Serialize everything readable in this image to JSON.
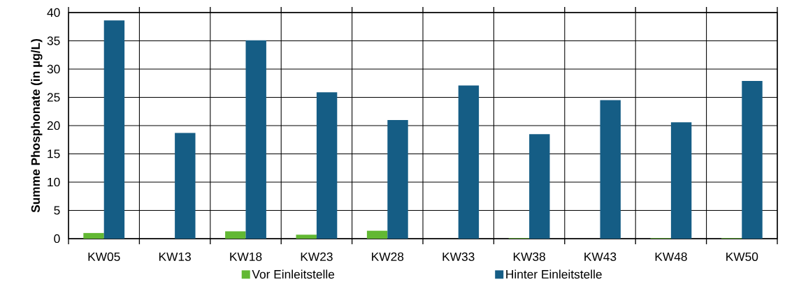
{
  "chart_data": {
    "type": "bar",
    "ylabel": "Summe Phosphonate (in µg/L)",
    "categories": [
      "KW05",
      "KW13",
      "KW18",
      "KW23",
      "KW28",
      "KW33",
      "KW38",
      "KW43",
      "KW48",
      "KW50"
    ],
    "series": [
      {
        "name": "Vor Einleitstelle",
        "color": "#62b833",
        "values": [
          1.0,
          0,
          1.3,
          0.7,
          1.4,
          0,
          0.1,
          0,
          0.1,
          0.1
        ]
      },
      {
        "name": "Hinter Einleitstelle",
        "color": "#155d85",
        "values": [
          38.6,
          18.7,
          35.1,
          25.9,
          21.0,
          27.1,
          18.5,
          24.5,
          20.6,
          27.9
        ]
      }
    ],
    "ylim": [
      0,
      40
    ],
    "yticks": [
      0,
      5,
      10,
      15,
      20,
      25,
      30,
      35,
      40
    ],
    "grid": true,
    "legend": "bottom"
  }
}
